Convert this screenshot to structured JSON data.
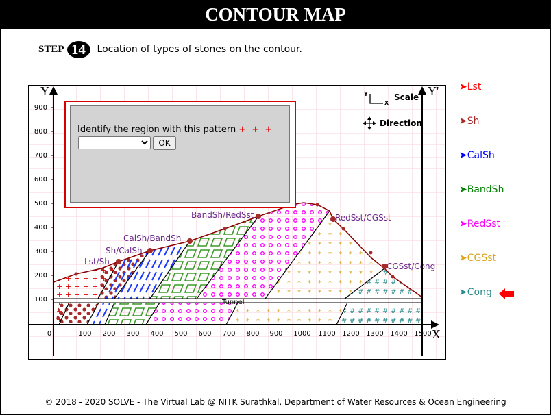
{
  "title": "CONTOUR MAP",
  "step": {
    "label": "STEP",
    "number": "14",
    "text": "Location of types of stones on the contour."
  },
  "diagram": {
    "axis_y": "Y",
    "axis_y_prime": "Y'",
    "axis_x": "X",
    "y_ticks": [
      "900",
      "800",
      "700",
      "600",
      "500",
      "400",
      "300",
      "200",
      "100"
    ],
    "x_ticks": [
      "0",
      "100",
      "200",
      "300",
      "400",
      "500",
      "600",
      "700",
      "800",
      "900",
      "1000",
      "1100",
      "1200",
      "1300",
      "1400",
      "1500"
    ],
    "scale_label": "Scale",
    "direction_label": "Direction",
    "tunnel_label": "Tunnel",
    "contact_labels": [
      "Lst/Sh",
      "Sh/CalSh",
      "CalSh/BandSh",
      "BandSh/RedSst",
      "RedSst/CGSst",
      "CGSst/Cong"
    ],
    "mini_axis_y": "Y",
    "mini_axis_x": "X"
  },
  "quiz": {
    "question": "Identify the region with this pattern",
    "pattern": "+ + +",
    "select_value": "",
    "ok_label": "OK"
  },
  "legend": [
    {
      "name": "Lst",
      "color": "#ff0000"
    },
    {
      "name": "Sh",
      "color": "#a52a2a"
    },
    {
      "name": "CalSh",
      "color": "#0000ff"
    },
    {
      "name": "BandSh",
      "color": "#008000"
    },
    {
      "name": "RedSst",
      "color": "#ff00ff"
    },
    {
      "name": "CGSst",
      "color": "#daa520"
    },
    {
      "name": "Cong",
      "color": "#2e8b8b"
    }
  ],
  "footer": "© 2018 - 2020 SOLVE - The Virtual Lab @ NITK Surathkal, Department of Water Resources & Ocean Engineering"
}
